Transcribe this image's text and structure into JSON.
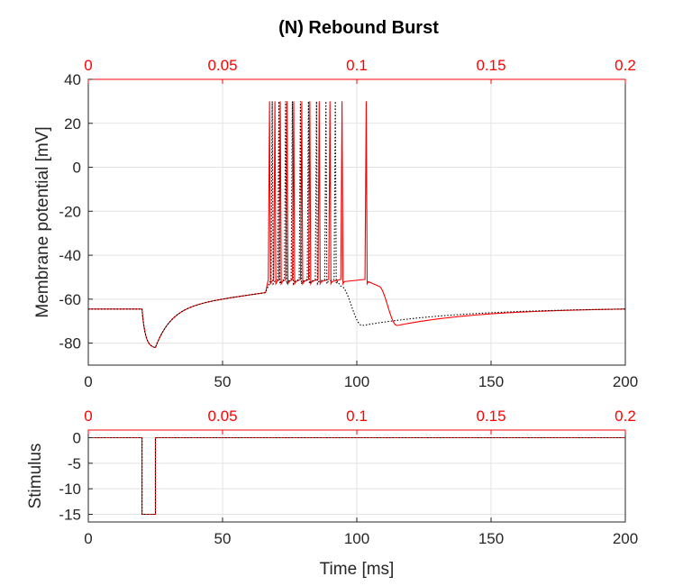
{
  "chart_data": {
    "type": "line",
    "title": "(N) Rebound Burst",
    "colors": {
      "primary": "#ff0000",
      "secondary": "#000000",
      "top_ticks": "#ff0000"
    },
    "grid": true,
    "panels": [
      {
        "id": "membrane",
        "ylabel": "Membrane potential [mV]",
        "xlim": [
          0,
          200
        ],
        "ylim": [
          -90,
          40
        ],
        "x_ticks": [
          0,
          50,
          100,
          150,
          200
        ],
        "y_ticks": [
          -80,
          -60,
          -40,
          -20,
          0,
          20,
          40
        ],
        "top_xlim": [
          0,
          0.2
        ],
        "top_ticks": [
          "0",
          "0.05",
          "0.1",
          "0.15",
          "0.2"
        ],
        "series": [
          {
            "style": "solid",
            "color": "#ff0000",
            "rest": -64.5,
            "pulse": [
              20,
              25
            ],
            "trough": -82,
            "ramp_end": 66,
            "ramp_end_v": -57,
            "peak": 30,
            "spike_floor": -52,
            "spike_times": [
              67.5,
              69.5,
              71.5,
              74,
              76.5,
              79.5,
              82.5,
              86,
              90,
              94.5,
              103.5
            ],
            "plateau_end": 108,
            "min_time": 115,
            "min_v": -72,
            "end_v": -64.5
          },
          {
            "style": "dotted",
            "color": "#000000",
            "rest": -64.5,
            "pulse": [
              20,
              25
            ],
            "trough": -82,
            "ramp_end": 66,
            "ramp_end_v": -57,
            "peak": 30,
            "spike_floor": -52,
            "spike_times": [
              68.5,
              71,
              73.5,
              76,
              79,
              82,
              85,
              88.5,
              92
            ],
            "plateau_end": 94,
            "min_time": 102,
            "min_v": -72,
            "end_v": -64.5
          }
        ]
      },
      {
        "id": "stimulus",
        "ylabel": "Stimulus",
        "xlabel": "Time [ms]",
        "xlim": [
          0,
          200
        ],
        "ylim": [
          -16.5,
          1.5
        ],
        "x_ticks": [
          0,
          50,
          100,
          150,
          200
        ],
        "y_ticks": [
          -15,
          -10,
          -5,
          0
        ],
        "top_xlim": [
          0,
          0.2
        ],
        "top_ticks": [
          "0",
          "0.05",
          "0.1",
          "0.15",
          "0.2"
        ],
        "series": [
          {
            "style": "solid",
            "color": "#ff0000",
            "x": [
              0,
              20,
              20,
              25,
              25,
              200
            ],
            "y": [
              0,
              0,
              -15,
              -15,
              0,
              0
            ]
          },
          {
            "style": "dotted",
            "color": "#000000",
            "x": [
              0,
              20,
              20,
              25,
              25,
              200
            ],
            "y": [
              0,
              0,
              -15,
              -15,
              0,
              0
            ]
          }
        ]
      }
    ]
  }
}
